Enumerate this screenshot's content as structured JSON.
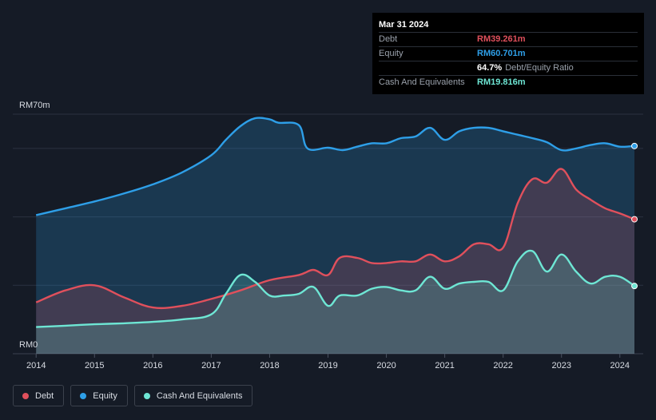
{
  "tooltip": {
    "date": "Mar 31 2024",
    "rows": [
      {
        "label": "Debt",
        "value": "RM39.261m",
        "color": "#e0505c"
      },
      {
        "label": "Equity",
        "value": "RM60.701m",
        "color": "#2e9fe8"
      },
      {
        "label": "",
        "value": "64.7%",
        "suffix": "Debt/Equity Ratio",
        "color": "#ffffff"
      },
      {
        "label": "Cash And Equivalents",
        "value": "RM19.816m",
        "color": "#6ee6d4"
      }
    ]
  },
  "legend": [
    {
      "label": "Debt",
      "color": "#e0505c"
    },
    {
      "label": "Equity",
      "color": "#2e9fe8"
    },
    {
      "label": "Cash And Equivalents",
      "color": "#6ee6d4"
    }
  ],
  "chart_data": {
    "type": "area",
    "title": "",
    "xlabel": "",
    "ylabel": "",
    "y_top_label": "RM70m",
    "y_bottom_label": "RM0",
    "ylim": [
      0,
      70
    ],
    "xlim": [
      2013.6,
      2024.4
    ],
    "x_ticks": [
      "2014",
      "2015",
      "2016",
      "2017",
      "2018",
      "2019",
      "2020",
      "2021",
      "2022",
      "2023",
      "2024"
    ],
    "gridlines": [
      20,
      40,
      60
    ],
    "series": [
      {
        "name": "Equity",
        "color": "#2e9fe8",
        "x": [
          2014.0,
          2014.5,
          2015.0,
          2015.5,
          2016.0,
          2016.5,
          2017.0,
          2017.25,
          2017.5,
          2017.75,
          2018.0,
          2018.15,
          2018.5,
          2018.65,
          2019.0,
          2019.25,
          2019.5,
          2019.75,
          2020.0,
          2020.25,
          2020.5,
          2020.75,
          2021.0,
          2021.25,
          2021.5,
          2021.75,
          2022.0,
          2022.25,
          2022.5,
          2022.75,
          2023.0,
          2023.25,
          2023.5,
          2023.75,
          2024.0,
          2024.25
        ],
        "values": [
          40.5,
          42.5,
          44.5,
          46.8,
          49.5,
          53.0,
          58.0,
          62.5,
          66.5,
          68.8,
          68.5,
          67.5,
          66.8,
          60.0,
          60.2,
          59.5,
          60.5,
          61.5,
          61.5,
          63.0,
          63.5,
          66.0,
          62.5,
          65.0,
          66.0,
          66.0,
          65.0,
          64.0,
          63.0,
          61.8,
          59.5,
          60.0,
          61.0,
          61.5,
          60.5,
          60.7
        ]
      },
      {
        "name": "Debt",
        "color": "#e0505c",
        "x": [
          2014.0,
          2014.5,
          2015.0,
          2015.5,
          2016.0,
          2016.5,
          2017.0,
          2017.5,
          2018.0,
          2018.5,
          2018.75,
          2019.0,
          2019.2,
          2019.5,
          2019.75,
          2020.0,
          2020.25,
          2020.5,
          2020.75,
          2021.0,
          2021.25,
          2021.5,
          2021.75,
          2022.0,
          2022.25,
          2022.5,
          2022.75,
          2023.0,
          2023.25,
          2023.5,
          2023.75,
          2024.0,
          2024.25
        ],
        "values": [
          15.0,
          18.5,
          20.0,
          16.5,
          13.5,
          14.0,
          16.0,
          18.5,
          21.5,
          23.0,
          24.5,
          23.0,
          28.0,
          28.0,
          26.5,
          26.5,
          27.0,
          27.0,
          29.0,
          27.0,
          28.5,
          32.0,
          32.0,
          31.0,
          44.0,
          51.0,
          50.0,
          54.0,
          48.0,
          45.0,
          42.5,
          41.0,
          39.3
        ]
      },
      {
        "name": "Cash And Equivalents",
        "color": "#6ee6d4",
        "x": [
          2014.0,
          2014.5,
          2015.0,
          2015.5,
          2016.0,
          2016.5,
          2017.0,
          2017.25,
          2017.5,
          2017.75,
          2018.0,
          2018.25,
          2018.5,
          2018.75,
          2019.0,
          2019.2,
          2019.5,
          2019.75,
          2020.0,
          2020.25,
          2020.5,
          2020.75,
          2021.0,
          2021.25,
          2021.5,
          2021.75,
          2022.0,
          2022.25,
          2022.5,
          2022.75,
          2023.0,
          2023.25,
          2023.5,
          2023.75,
          2024.0,
          2024.25
        ],
        "values": [
          7.8,
          8.2,
          8.6,
          8.9,
          9.3,
          10.0,
          11.5,
          17.5,
          23.0,
          21.0,
          17.0,
          17.0,
          17.5,
          19.5,
          14.0,
          17.0,
          17.0,
          19.0,
          19.5,
          18.5,
          18.5,
          22.5,
          19.0,
          20.5,
          21.0,
          21.0,
          18.5,
          27.0,
          30.0,
          24.0,
          29.0,
          24.0,
          20.5,
          22.5,
          22.5,
          19.8
        ]
      }
    ]
  }
}
